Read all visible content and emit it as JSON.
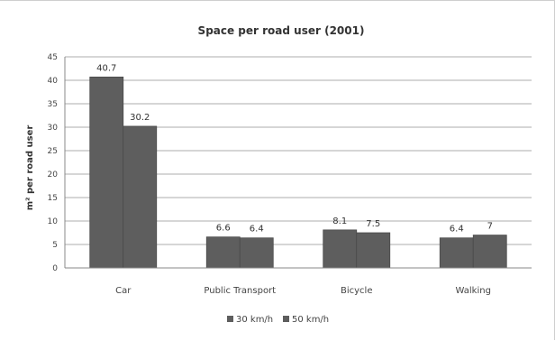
{
  "chart_data": {
    "type": "bar",
    "title": "Space per road user (2001)",
    "xlabel": "",
    "ylabel": "m² per road user",
    "ylim": [
      0,
      45
    ],
    "yticks": [
      0,
      5,
      10,
      15,
      20,
      25,
      30,
      35,
      40,
      45
    ],
    "grid": true,
    "legend_position": "bottom",
    "categories": [
      "Car",
      "Public Transport",
      "Bicycle",
      "Walking"
    ],
    "series": [
      {
        "name": "30 km/h",
        "values": [
          40.7,
          6.6,
          8.1,
          6.4
        ],
        "labels": [
          "40.7",
          "6.6",
          "8.1",
          "6.4"
        ]
      },
      {
        "name": "50 km/h",
        "values": [
          30.2,
          6.4,
          7.5,
          7
        ],
        "labels": [
          "30.2",
          "6.4",
          "7.5",
          "7"
        ]
      }
    ],
    "colors": {
      "bar": "#5e5e5e",
      "grid": "#bdbdbd",
      "axis": "#888888"
    }
  }
}
